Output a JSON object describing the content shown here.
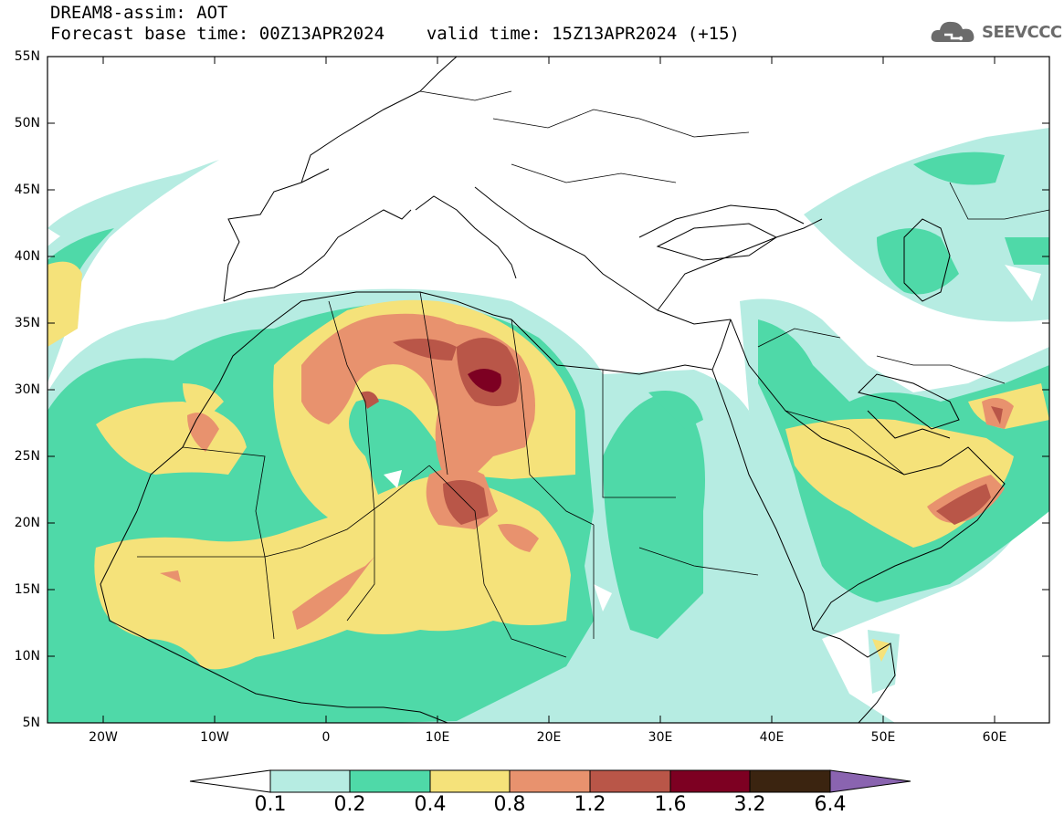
{
  "header": {
    "title": "DREAM8-assim: AOT",
    "base_time_label": "Forecast base time: 00Z13APR2024",
    "valid_time_label": "valid time: 15Z13APR2024 (+15)",
    "logo_text": "SEEVCCC"
  },
  "axes": {
    "lat_labels": [
      "55N",
      "50N",
      "45N",
      "40N",
      "35N",
      "30N",
      "25N",
      "20N",
      "15N",
      "10N",
      "5N"
    ],
    "lon_labels": [
      "20W",
      "10W",
      "0",
      "10E",
      "20E",
      "30E",
      "40E",
      "50E",
      "60E"
    ]
  },
  "colorbar": {
    "levels": [
      "0.1",
      "0.2",
      "0.4",
      "0.8",
      "1.2",
      "1.6",
      "3.2",
      "6.4"
    ],
    "colors": [
      "#ffffff",
      "#b6ece2",
      "#4fd9a8",
      "#f5e27a",
      "#e8926e",
      "#b95648",
      "#7d0022",
      "#3b2410",
      "#8a64b0"
    ]
  }
}
